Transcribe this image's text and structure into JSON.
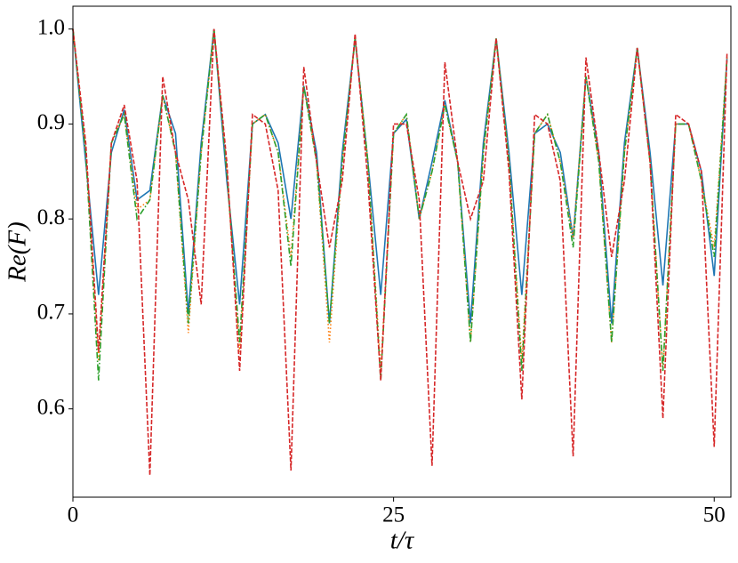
{
  "chart_data": {
    "type": "line",
    "xlabel": "t/τ",
    "ylabel": "Re(F)",
    "x": [
      0,
      1,
      2,
      3,
      4,
      5,
      6,
      7,
      8,
      9,
      10,
      11,
      12,
      13,
      14,
      15,
      16,
      17,
      18,
      19,
      20,
      21,
      22,
      23,
      24,
      25,
      26,
      27,
      28,
      29,
      30,
      31,
      32,
      33,
      34,
      35,
      36,
      37,
      38,
      39,
      40,
      41,
      42,
      43,
      44,
      45,
      46,
      47,
      48,
      49,
      50,
      51
    ],
    "xlim": [
      0,
      51.3
    ],
    "ylim": [
      0.507,
      1.024
    ],
    "xticks": [
      0,
      25,
      50
    ],
    "yticks": [
      0.6,
      0.7,
      0.8,
      0.9,
      {
        "value": 1,
        "label": "1.0"
      }
    ],
    "series": [
      {
        "color": "#1f77b4",
        "linestyle": "solid",
        "values": [
          1.0,
          0.86,
          0.72,
          0.87,
          0.915,
          0.82,
          0.83,
          0.93,
          0.89,
          0.7,
          0.88,
          1.0,
          0.84,
          0.71,
          0.9,
          0.91,
          0.88,
          0.8,
          0.94,
          0.87,
          0.69,
          0.87,
          0.99,
          0.86,
          0.72,
          0.89,
          0.905,
          0.8,
          0.86,
          0.925,
          0.86,
          0.69,
          0.88,
          0.99,
          0.87,
          0.72,
          0.89,
          0.9,
          0.87,
          0.78,
          0.95,
          0.87,
          0.69,
          0.88,
          0.98,
          0.87,
          0.73,
          0.9,
          0.9,
          0.85,
          0.74,
          0.97
        ]
      },
      {
        "color": "#ff7f0e",
        "linestyle": "dotted",
        "values": [
          1.0,
          0.87,
          0.65,
          0.88,
          0.91,
          0.81,
          0.82,
          0.93,
          0.87,
          0.68,
          0.87,
          1.0,
          0.85,
          0.66,
          0.9,
          0.91,
          0.87,
          0.76,
          0.94,
          0.86,
          0.67,
          0.86,
          0.99,
          0.86,
          0.64,
          0.89,
          0.91,
          0.8,
          0.85,
          0.92,
          0.86,
          0.67,
          0.87,
          0.99,
          0.86,
          0.65,
          0.89,
          0.91,
          0.86,
          0.78,
          0.95,
          0.86,
          0.67,
          0.87,
          0.98,
          0.86,
          0.64,
          0.9,
          0.9,
          0.84,
          0.77,
          0.97
        ]
      },
      {
        "color": "#2ca02c",
        "linestyle": "dashdot",
        "values": [
          1.0,
          0.87,
          0.63,
          0.88,
          0.91,
          0.8,
          0.82,
          0.93,
          0.87,
          0.69,
          0.87,
          1.0,
          0.85,
          0.67,
          0.9,
          0.91,
          0.87,
          0.75,
          0.94,
          0.86,
          0.69,
          0.86,
          0.99,
          0.86,
          0.63,
          0.89,
          0.91,
          0.8,
          0.85,
          0.92,
          0.86,
          0.67,
          0.87,
          0.99,
          0.86,
          0.64,
          0.89,
          0.91,
          0.86,
          0.77,
          0.95,
          0.86,
          0.67,
          0.87,
          0.98,
          0.86,
          0.64,
          0.9,
          0.9,
          0.84,
          0.76,
          0.97
        ]
      },
      {
        "color": "#d62728",
        "linestyle": "dashed",
        "values": [
          1.0,
          0.88,
          0.66,
          0.88,
          0.92,
          0.84,
          0.53,
          0.95,
          0.87,
          0.82,
          0.71,
          1.0,
          0.86,
          0.64,
          0.91,
          0.9,
          0.83,
          0.535,
          0.96,
          0.86,
          0.77,
          0.84,
          0.995,
          0.84,
          0.63,
          0.9,
          0.9,
          0.82,
          0.54,
          0.965,
          0.86,
          0.8,
          0.84,
          0.99,
          0.85,
          0.61,
          0.91,
          0.9,
          0.84,
          0.55,
          0.97,
          0.87,
          0.76,
          0.84,
          0.98,
          0.86,
          0.59,
          0.91,
          0.9,
          0.85,
          0.56,
          0.975
        ]
      }
    ]
  }
}
